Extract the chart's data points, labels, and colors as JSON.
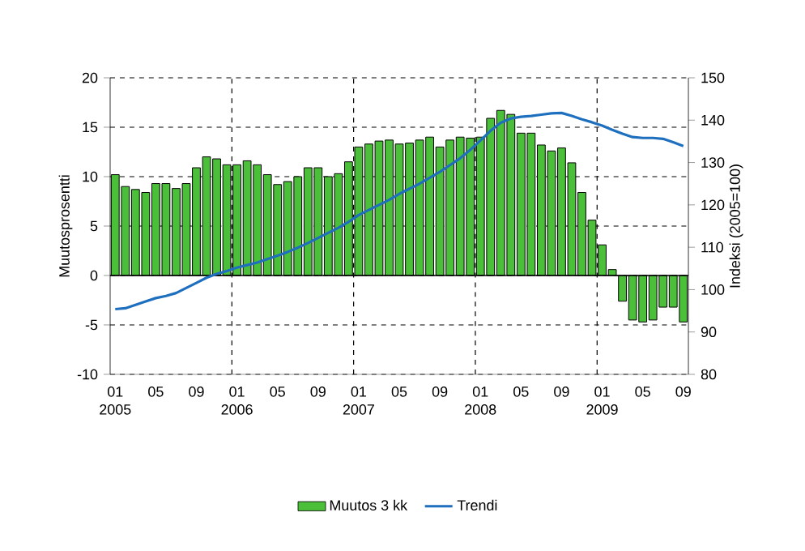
{
  "chart_data": {
    "type": "bar",
    "ylabel": "Muutosprosentti",
    "y2label": "Indeksi (2005=100)",
    "categories": [
      "01",
      null,
      null,
      null,
      "05",
      null,
      null,
      null,
      "09",
      null,
      null,
      null,
      "01",
      null,
      null,
      null,
      "05",
      null,
      null,
      null,
      "09",
      null,
      null,
      null,
      "01",
      null,
      null,
      null,
      "05",
      null,
      null,
      null,
      "09",
      null,
      null,
      null,
      "01",
      null,
      null,
      null,
      "05",
      null,
      null,
      null,
      "09",
      null,
      null,
      null,
      "01",
      null,
      null,
      null,
      "05",
      null,
      null,
      null,
      "09"
    ],
    "annotations": [
      "2005",
      "2006",
      "2007",
      "2008",
      "2009"
    ],
    "series": [
      {
        "name": "Muutos 3 kk",
        "color": "#4cbf3a",
        "values": [
          10.2,
          9.0,
          8.7,
          8.4,
          9.3,
          9.3,
          8.8,
          9.3,
          10.9,
          12.0,
          11.8,
          11.2,
          11.2,
          11.6,
          11.2,
          10.2,
          9.2,
          9.5,
          10.0,
          10.9,
          10.9,
          10.0,
          10.3,
          11.5,
          13.0,
          13.3,
          13.6,
          13.7,
          13.3,
          13.4,
          13.7,
          14.0,
          13.0,
          13.7,
          14.0,
          13.9,
          14.0,
          15.9,
          16.7,
          16.3,
          14.4,
          14.4,
          13.2,
          12.6,
          12.9,
          11.4,
          8.4,
          5.6,
          3.1,
          0.6,
          -2.6,
          -4.5,
          -4.7,
          -4.5,
          -3.2,
          -3.2,
          -4.7
        ]
      },
      {
        "name": "Trendi",
        "type": "line",
        "axis": "y2",
        "color": "#1f6fbf",
        "values": [
          95.4,
          95.6,
          96.4,
          97.2,
          98.0,
          98.5,
          99.2,
          100.4,
          101.6,
          102.8,
          103.7,
          104.4,
          105.2,
          105.8,
          106.4,
          107.2,
          108.0,
          108.9,
          109.9,
          111.0,
          112.2,
          113.4,
          114.6,
          116.0,
          117.6,
          118.8,
          120.0,
          121.2,
          122.6,
          123.8,
          125.0,
          126.4,
          127.8,
          129.4,
          131.0,
          133.0,
          135.2,
          137.5,
          139.4,
          140.4,
          140.8,
          141.0,
          141.3,
          141.6,
          141.7,
          141.0,
          140.2,
          139.5,
          138.7,
          137.7,
          136.8,
          136.0,
          135.8,
          135.8,
          135.6,
          134.8,
          133.9
        ]
      }
    ],
    "ylim": [
      -10,
      20
    ],
    "yticks": [
      -10,
      -5,
      0,
      5,
      10,
      15,
      20
    ],
    "y2lim": [
      80,
      150
    ],
    "y2ticks": [
      80,
      90,
      100,
      110,
      120,
      130,
      140,
      150
    ],
    "grid": true,
    "legend": "bottom",
    "marker": "none",
    "line_style": "solid"
  }
}
